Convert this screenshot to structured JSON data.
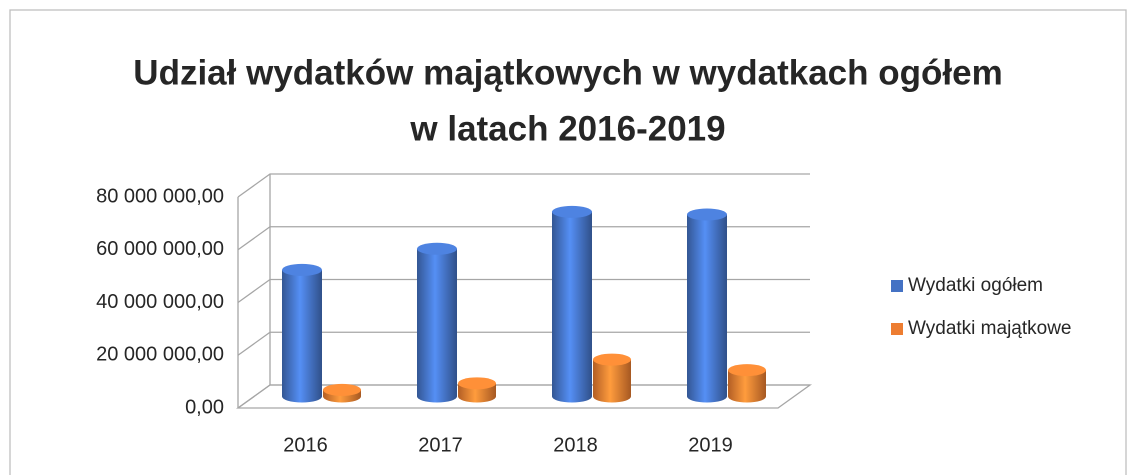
{
  "chart_data": {
    "type": "bar3d",
    "title": [
      "Udział wydatków majątkowych w wydatkach ogółem",
      "w latach 2016-2019"
    ],
    "categories": [
      "2016",
      "2017",
      "2018",
      "2019"
    ],
    "series": [
      {
        "name": "Wydatki ogółem",
        "color": "#4472c4",
        "values": [
          48000000,
          56000000,
          70000000,
          69000000
        ]
      },
      {
        "name": "Wydatki majątkowe",
        "color": "#ed7d31",
        "values": [
          2500000,
          5000000,
          14000000,
          10000000
        ]
      }
    ],
    "ylim": [
      0,
      80000000
    ],
    "yticks": [
      {
        "value": 0,
        "label": "0,00"
      },
      {
        "value": 20000000,
        "label": "20 000 000,00"
      },
      {
        "value": 40000000,
        "label": "40 000 000,00"
      },
      {
        "value": 60000000,
        "label": "60 000 000,00"
      },
      {
        "value": 80000000,
        "label": "80 000 000,00"
      }
    ],
    "grid": true,
    "legend": "right"
  }
}
